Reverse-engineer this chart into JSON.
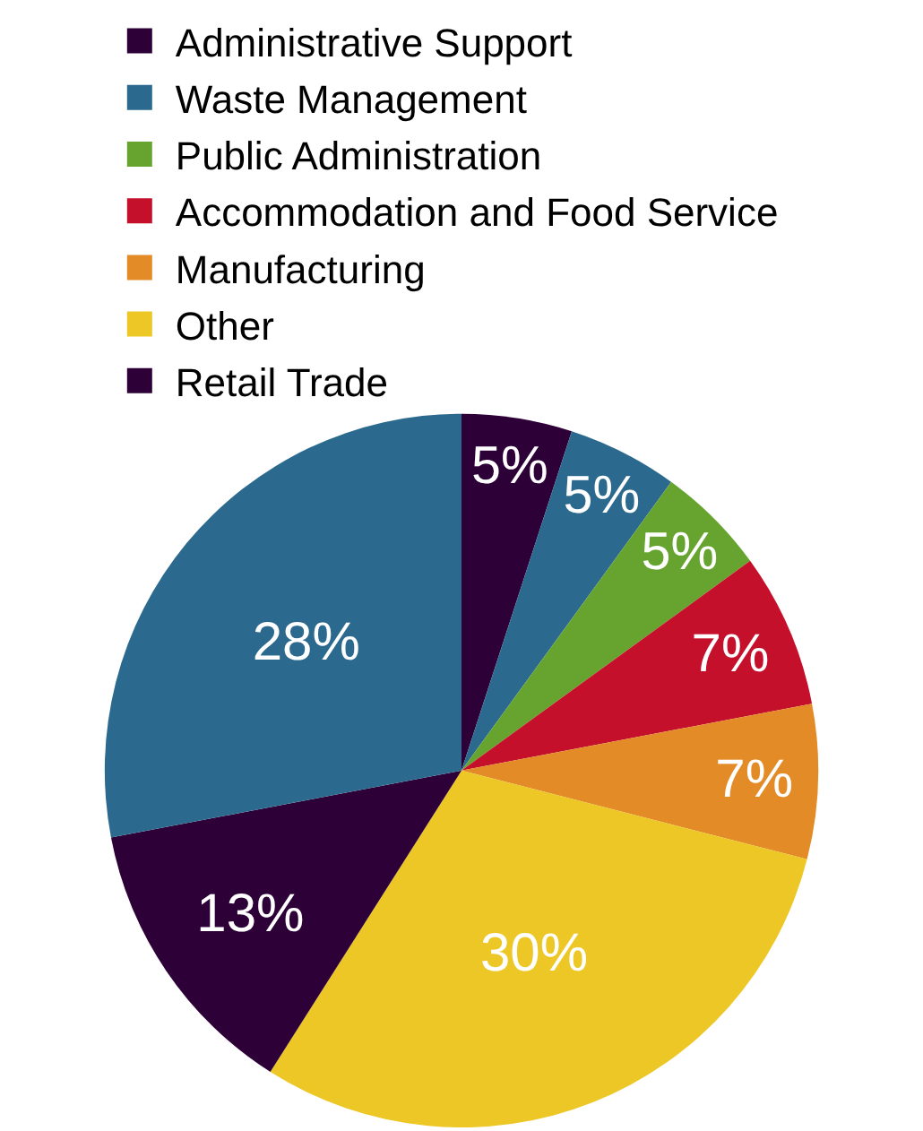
{
  "chart_data": {
    "type": "pie",
    "categories": [
      "Administrative Support",
      "Waste Management",
      "Public Administration",
      "Accommodation and Food Service",
      "Manufacturing",
      "Other",
      "Retail Trade",
      null
    ],
    "values": [
      5,
      5,
      5,
      7,
      7,
      30,
      13,
      28
    ],
    "colors": [
      "#2e0038",
      "#2b6a8e",
      "#67a42f",
      "#c4102b",
      "#e38b26",
      "#ecc726",
      "#2e0038",
      "#2b6a8e"
    ],
    "value_labels": [
      "5%",
      "5%",
      "5%",
      "7%",
      "7%",
      "30%",
      "13%",
      "28%"
    ],
    "legend": "top"
  }
}
